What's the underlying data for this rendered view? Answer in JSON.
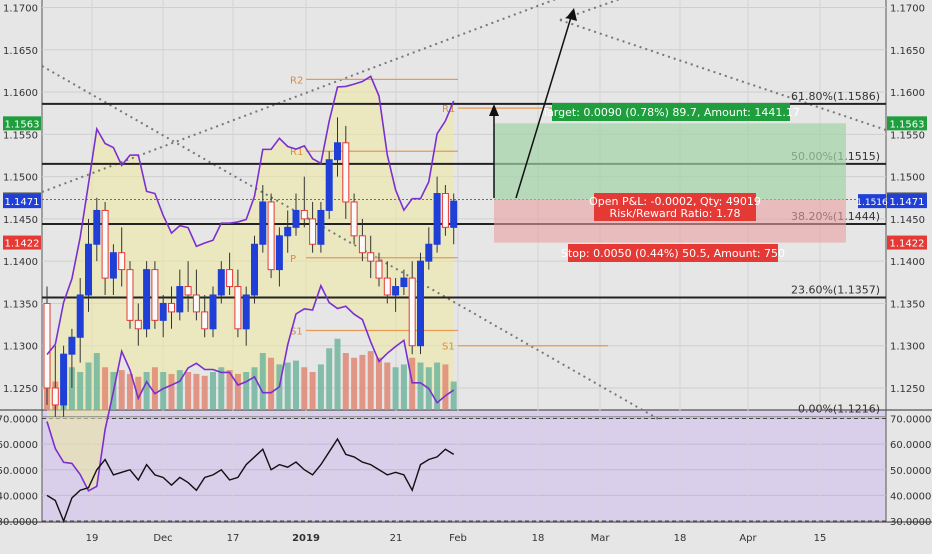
{
  "chart_data": {
    "type": "candlestick",
    "price_axis": {
      "ticks": [
        "1.1700",
        "1.1650",
        "1.1600",
        "1.1550",
        "1.1500",
        "1.1450",
        "1.1400",
        "1.1350",
        "1.1300",
        "1.1250"
      ],
      "tick_values": [
        1.17,
        1.165,
        1.16,
        1.155,
        1.15,
        1.145,
        1.14,
        1.135,
        1.13,
        1.125
      ],
      "range": [
        1.1214,
        1.1705
      ]
    },
    "rsi_axis": {
      "ticks": [
        "70.0000",
        "60.0000",
        "50.0000",
        "40.0000",
        "30.0000"
      ],
      "tick_values": [
        70,
        60,
        50,
        40,
        30
      ],
      "range": [
        28,
        72
      ]
    },
    "time_axis": {
      "labels": [
        "19",
        "Dec",
        "17",
        "2019",
        "21",
        "Feb",
        "18",
        "Mar",
        "18",
        "Apr",
        "15"
      ],
      "bold": [
        "2019"
      ]
    },
    "price_badges": {
      "target": {
        "left": "1.1563",
        "right": "1.1563",
        "value": 1.1563,
        "color": "#1e9e3c"
      },
      "high": {
        "left": "1.1473",
        "right": "1.1473",
        "value": 1.1473,
        "color": "#555555"
      },
      "last": {
        "left": "1.1471",
        "right": "1.1471",
        "value": 1.1471,
        "color": "#1f3fd6"
      },
      "stop": {
        "left": "1.1422",
        "right": "1.1422",
        "value": 1.1422,
        "color": "#e53935"
      },
      "mid_tag": "1.1516"
    },
    "fibonacci": [
      {
        "label": "61.80%(1.1586)",
        "value": 1.1586
      },
      {
        "label": "50.00%(1.1515)",
        "value": 1.1515
      },
      {
        "label": "38.20%(1.1444)",
        "value": 1.1444
      },
      {
        "label": "23.60%(1.1357)",
        "value": 1.1357
      },
      {
        "label": "0.00%(1.1216)",
        "value": 1.1216
      }
    ],
    "pivots": [
      {
        "label": "R2",
        "value": 1.1615
      },
      {
        "label": "R1",
        "value": 1.1581
      },
      {
        "label": "R1",
        "value": 1.153
      },
      {
        "label": "P",
        "value": 1.1404
      },
      {
        "label": "S1",
        "value": 1.1318
      },
      {
        "label": "S1",
        "value": 1.13
      }
    ],
    "position": {
      "target_label": "Target: 0.0090 (0.78%) 89.7, Amount: 1441.17",
      "pnl_label": "Open P&L: -0.0002, Qty: 49019",
      "ratio_label": "Risk/Reward Ratio: 1.78",
      "stop_label": "Stop: 0.0050 (0.44%) 50.5, Amount: 750",
      "entry": 1.1473,
      "target": 1.1563,
      "stop": 1.1422
    },
    "candles": [
      {
        "o": 1.135,
        "h": 1.137,
        "l": 1.123,
        "c": 1.125
      },
      {
        "o": 1.125,
        "h": 1.13,
        "l": 1.1216,
        "c": 1.123
      },
      {
        "o": 1.123,
        "h": 1.13,
        "l": 1.1216,
        "c": 1.129
      },
      {
        "o": 1.129,
        "h": 1.132,
        "l": 1.125,
        "c": 1.131
      },
      {
        "o": 1.131,
        "h": 1.138,
        "l": 1.128,
        "c": 1.136
      },
      {
        "o": 1.136,
        "h": 1.145,
        "l": 1.134,
        "c": 1.142
      },
      {
        "o": 1.142,
        "h": 1.1475,
        "l": 1.14,
        "c": 1.146
      },
      {
        "o": 1.146,
        "h": 1.147,
        "l": 1.136,
        "c": 1.138
      },
      {
        "o": 1.138,
        "h": 1.142,
        "l": 1.136,
        "c": 1.141
      },
      {
        "o": 1.141,
        "h": 1.144,
        "l": 1.137,
        "c": 1.139
      },
      {
        "o": 1.139,
        "h": 1.14,
        "l": 1.132,
        "c": 1.133
      },
      {
        "o": 1.133,
        "h": 1.135,
        "l": 1.13,
        "c": 1.132
      },
      {
        "o": 1.132,
        "h": 1.14,
        "l": 1.131,
        "c": 1.139
      },
      {
        "o": 1.139,
        "h": 1.14,
        "l": 1.132,
        "c": 1.133
      },
      {
        "o": 1.133,
        "h": 1.136,
        "l": 1.131,
        "c": 1.135
      },
      {
        "o": 1.135,
        "h": 1.137,
        "l": 1.132,
        "c": 1.134
      },
      {
        "o": 1.134,
        "h": 1.139,
        "l": 1.133,
        "c": 1.137
      },
      {
        "o": 1.137,
        "h": 1.14,
        "l": 1.134,
        "c": 1.136
      },
      {
        "o": 1.136,
        "h": 1.139,
        "l": 1.133,
        "c": 1.134
      },
      {
        "o": 1.134,
        "h": 1.136,
        "l": 1.131,
        "c": 1.132
      },
      {
        "o": 1.132,
        "h": 1.137,
        "l": 1.131,
        "c": 1.136
      },
      {
        "o": 1.136,
        "h": 1.14,
        "l": 1.135,
        "c": 1.139
      },
      {
        "o": 1.139,
        "h": 1.141,
        "l": 1.136,
        "c": 1.137
      },
      {
        "o": 1.137,
        "h": 1.139,
        "l": 1.131,
        "c": 1.132
      },
      {
        "o": 1.132,
        "h": 1.137,
        "l": 1.13,
        "c": 1.136
      },
      {
        "o": 1.136,
        "h": 1.143,
        "l": 1.135,
        "c": 1.142
      },
      {
        "o": 1.142,
        "h": 1.149,
        "l": 1.141,
        "c": 1.147
      },
      {
        "o": 1.147,
        "h": 1.148,
        "l": 1.138,
        "c": 1.139
      },
      {
        "o": 1.139,
        "h": 1.144,
        "l": 1.137,
        "c": 1.143
      },
      {
        "o": 1.143,
        "h": 1.146,
        "l": 1.141,
        "c": 1.144
      },
      {
        "o": 1.144,
        "h": 1.148,
        "l": 1.143,
        "c": 1.146
      },
      {
        "o": 1.146,
        "h": 1.15,
        "l": 1.144,
        "c": 1.145
      },
      {
        "o": 1.145,
        "h": 1.147,
        "l": 1.141,
        "c": 1.142
      },
      {
        "o": 1.142,
        "h": 1.147,
        "l": 1.141,
        "c": 1.146
      },
      {
        "o": 1.146,
        "h": 1.153,
        "l": 1.145,
        "c": 1.152
      },
      {
        "o": 1.152,
        "h": 1.157,
        "l": 1.15,
        "c": 1.154
      },
      {
        "o": 1.154,
        "h": 1.156,
        "l": 1.145,
        "c": 1.147
      },
      {
        "o": 1.147,
        "h": 1.148,
        "l": 1.142,
        "c": 1.143
      },
      {
        "o": 1.143,
        "h": 1.145,
        "l": 1.14,
        "c": 1.141
      },
      {
        "o": 1.141,
        "h": 1.143,
        "l": 1.138,
        "c": 1.14
      },
      {
        "o": 1.14,
        "h": 1.141,
        "l": 1.137,
        "c": 1.138
      },
      {
        "o": 1.138,
        "h": 1.14,
        "l": 1.135,
        "c": 1.136
      },
      {
        "o": 1.136,
        "h": 1.138,
        "l": 1.134,
        "c": 1.137
      },
      {
        "o": 1.137,
        "h": 1.139,
        "l": 1.136,
        "c": 1.138
      },
      {
        "o": 1.138,
        "h": 1.14,
        "l": 1.129,
        "c": 1.13
      },
      {
        "o": 1.13,
        "h": 1.141,
        "l": 1.129,
        "c": 1.14
      },
      {
        "o": 1.14,
        "h": 1.144,
        "l": 1.139,
        "c": 1.142
      },
      {
        "o": 1.142,
        "h": 1.15,
        "l": 1.141,
        "c": 1.148
      },
      {
        "o": 1.148,
        "h": 1.149,
        "l": 1.143,
        "c": 1.144
      },
      {
        "o": 1.144,
        "h": 1.148,
        "l": 1.142,
        "c": 1.1471
      }
    ],
    "volume": [
      0.35,
      0.3,
      0.4,
      0.45,
      0.4,
      0.5,
      0.6,
      0.45,
      0.4,
      0.42,
      0.38,
      0.35,
      0.4,
      0.45,
      0.4,
      0.38,
      0.42,
      0.4,
      0.38,
      0.36,
      0.4,
      0.45,
      0.42,
      0.38,
      0.4,
      0.45,
      0.6,
      0.55,
      0.48,
      0.5,
      0.52,
      0.45,
      0.4,
      0.48,
      0.65,
      0.75,
      0.6,
      0.55,
      0.58,
      0.62,
      0.55,
      0.5,
      0.45,
      0.48,
      0.55,
      0.5,
      0.45,
      0.5,
      0.48,
      0.3
    ],
    "rsi": [
      40,
      38,
      30,
      39,
      42,
      43,
      50,
      54,
      48,
      49,
      50,
      46,
      52,
      48,
      47,
      44,
      47,
      45,
      42,
      47,
      48,
      50,
      46,
      47,
      52,
      55,
      58,
      50,
      52,
      51,
      53,
      50,
      48,
      52,
      57,
      62,
      56,
      55,
      53,
      52,
      50,
      48,
      49,
      48,
      42,
      52,
      54,
      55,
      58,
      56
    ]
  }
}
